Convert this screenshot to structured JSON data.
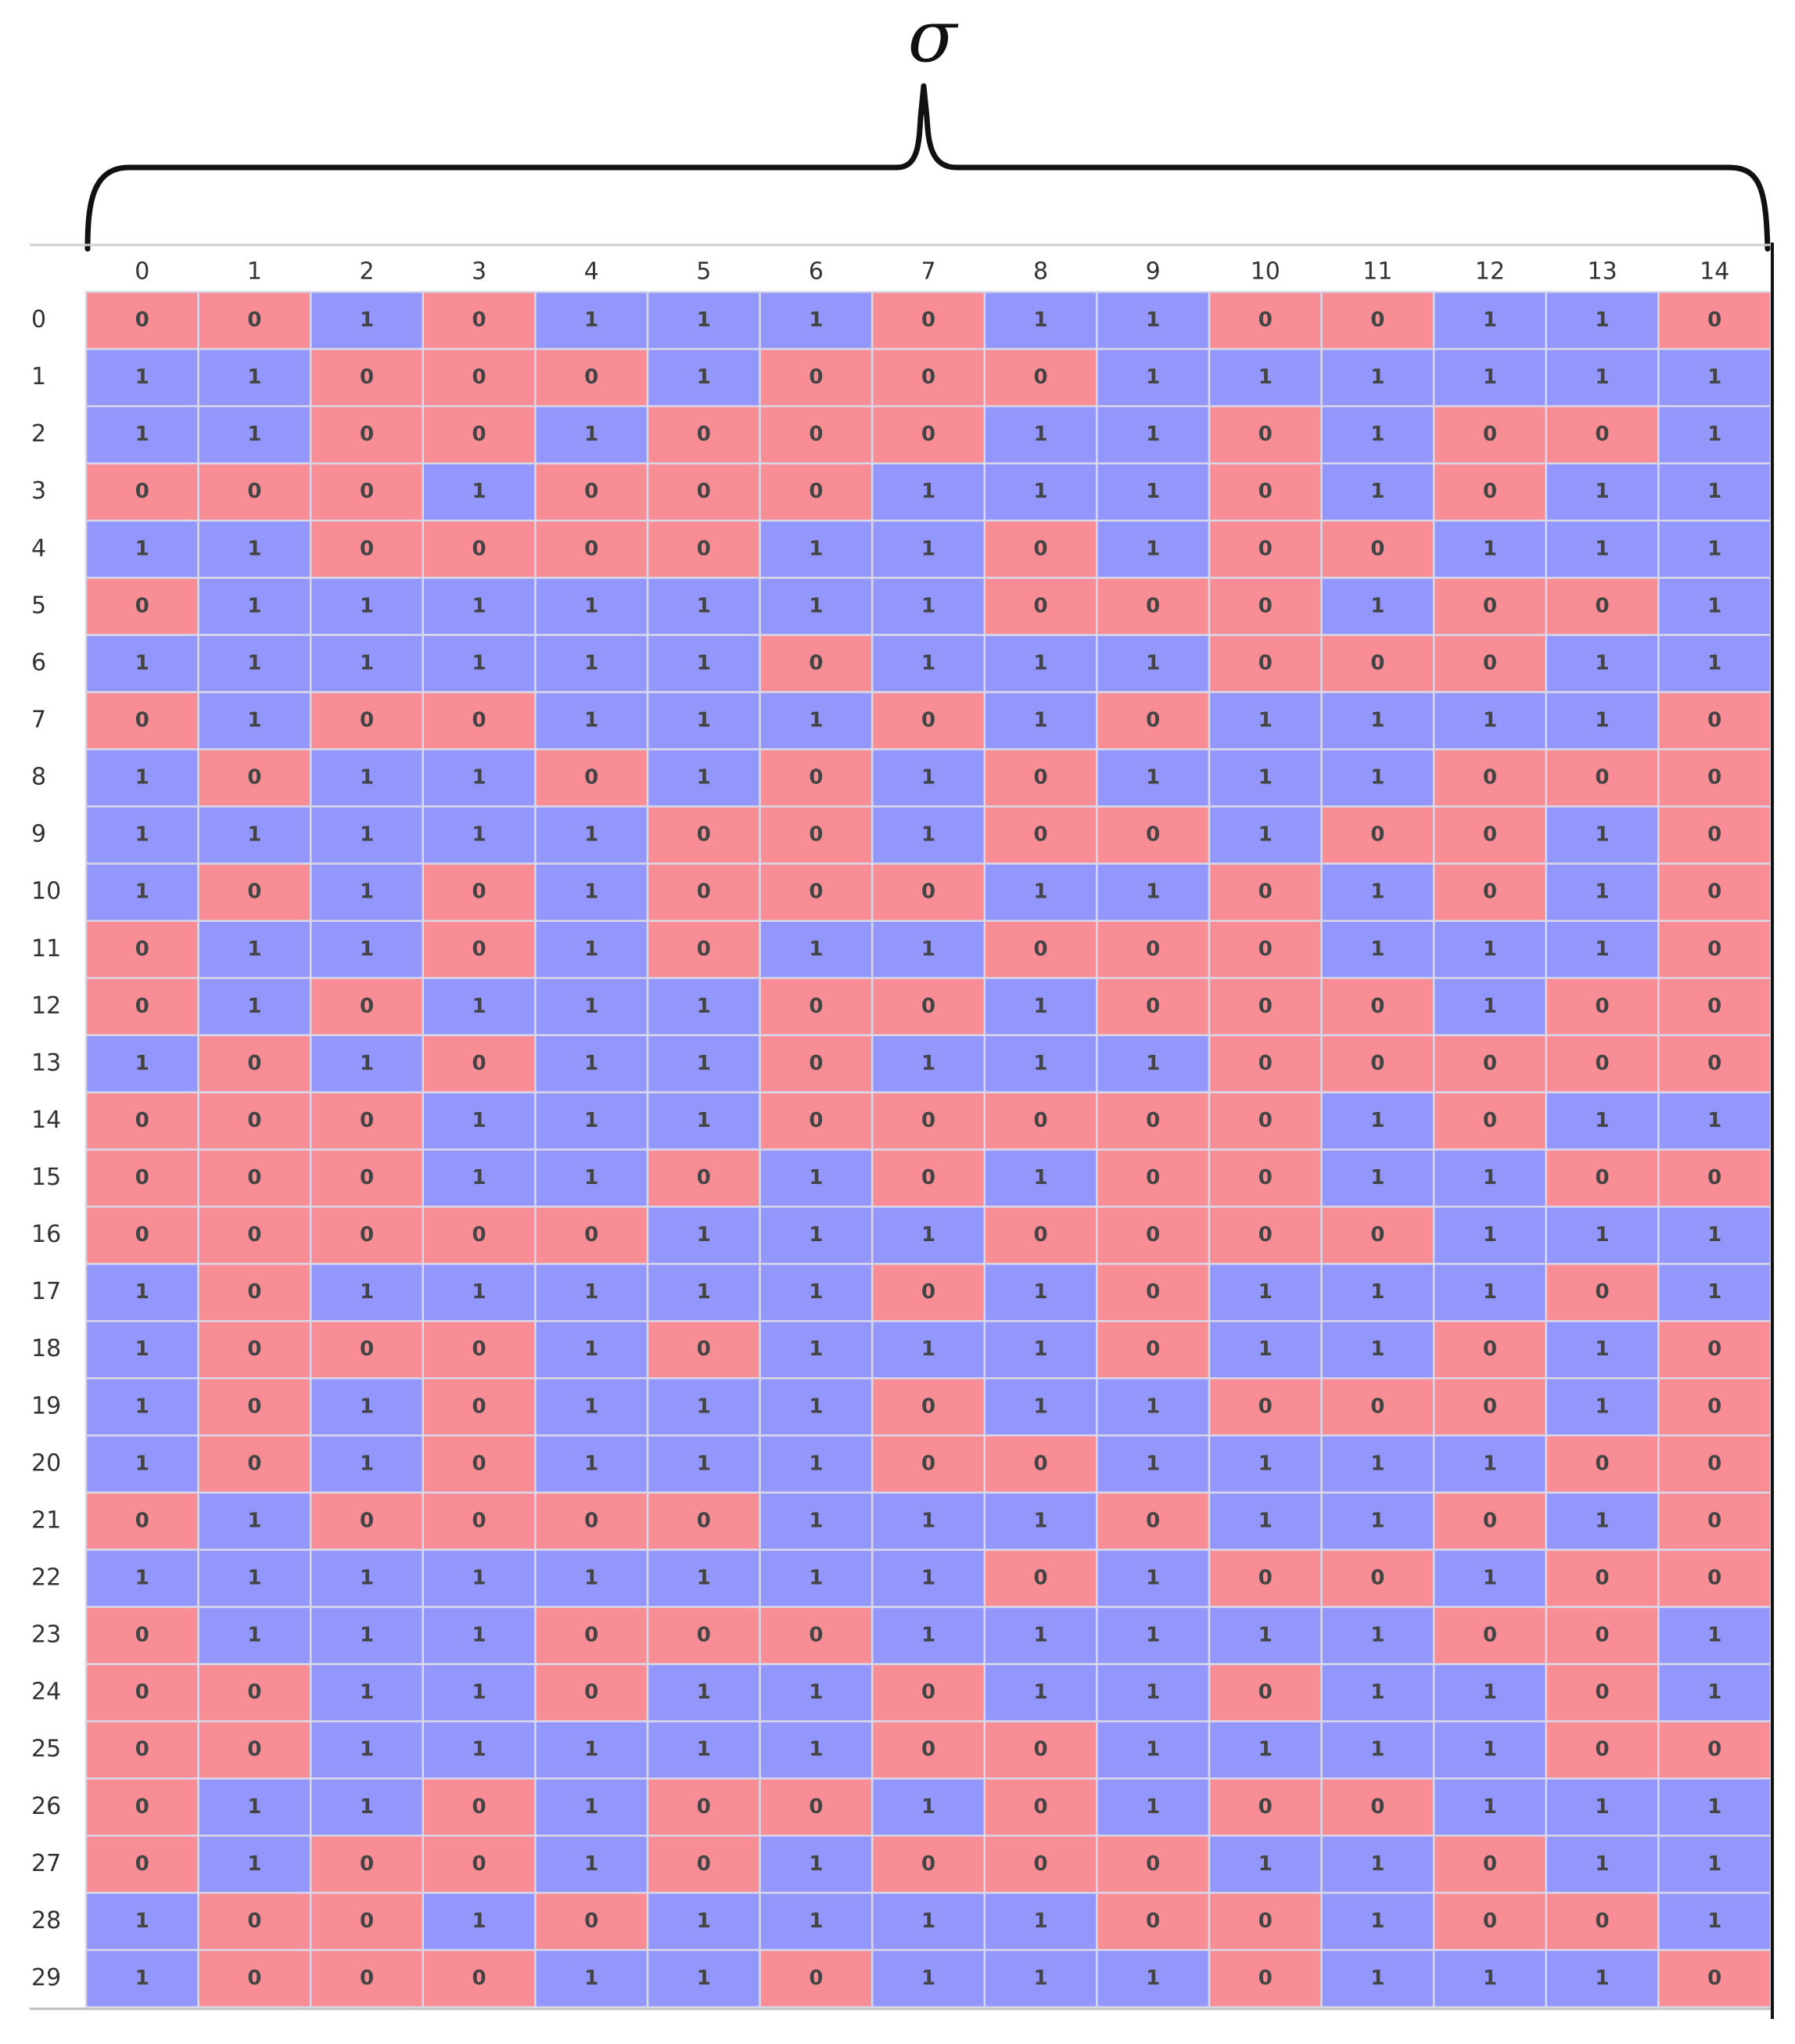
{
  "chart_data": {
    "type": "heatmap",
    "title": "σ",
    "xlabel": "",
    "ylabel": "",
    "columns": [
      "0",
      "1",
      "2",
      "3",
      "4",
      "5",
      "6",
      "7",
      "8",
      "9",
      "10",
      "11",
      "12",
      "13",
      "14"
    ],
    "rows": [
      "0",
      "1",
      "2",
      "3",
      "4",
      "5",
      "6",
      "7",
      "8",
      "9",
      "10",
      "11",
      "12",
      "13",
      "14",
      "15",
      "16",
      "17",
      "18",
      "19",
      "20",
      "21",
      "22",
      "23",
      "24",
      "25",
      "26",
      "27",
      "28",
      "29"
    ],
    "values": [
      [
        0,
        0,
        1,
        0,
        1,
        1,
        1,
        0,
        1,
        1,
        0,
        0,
        1,
        1,
        0
      ],
      [
        1,
        1,
        0,
        0,
        0,
        1,
        0,
        0,
        0,
        1,
        1,
        1,
        1,
        1,
        1
      ],
      [
        1,
        1,
        0,
        0,
        1,
        0,
        0,
        0,
        1,
        1,
        0,
        1,
        0,
        0,
        1
      ],
      [
        0,
        0,
        0,
        1,
        0,
        0,
        0,
        1,
        1,
        1,
        0,
        1,
        0,
        1,
        1
      ],
      [
        1,
        1,
        0,
        0,
        0,
        0,
        1,
        1,
        0,
        1,
        0,
        0,
        1,
        1,
        1
      ],
      [
        0,
        1,
        1,
        1,
        1,
        1,
        1,
        1,
        0,
        0,
        0,
        1,
        0,
        0,
        1
      ],
      [
        1,
        1,
        1,
        1,
        1,
        1,
        0,
        1,
        1,
        1,
        0,
        0,
        0,
        1,
        1
      ],
      [
        0,
        1,
        0,
        0,
        1,
        1,
        1,
        0,
        1,
        0,
        1,
        1,
        1,
        1,
        0
      ],
      [
        1,
        0,
        1,
        1,
        0,
        1,
        0,
        1,
        0,
        1,
        1,
        1,
        0,
        0,
        0
      ],
      [
        1,
        1,
        1,
        1,
        1,
        0,
        0,
        1,
        0,
        0,
        1,
        0,
        0,
        1,
        0
      ],
      [
        1,
        0,
        1,
        0,
        1,
        0,
        0,
        0,
        1,
        1,
        0,
        1,
        0,
        1,
        0
      ],
      [
        0,
        1,
        1,
        0,
        1,
        0,
        1,
        1,
        0,
        0,
        0,
        1,
        1,
        1,
        0
      ],
      [
        0,
        1,
        0,
        1,
        1,
        1,
        0,
        0,
        1,
        0,
        0,
        0,
        1,
        0,
        0
      ],
      [
        1,
        0,
        1,
        0,
        1,
        1,
        0,
        1,
        1,
        1,
        0,
        0,
        0,
        0,
        0
      ],
      [
        0,
        0,
        0,
        1,
        1,
        1,
        0,
        0,
        0,
        0,
        0,
        1,
        0,
        1,
        1
      ],
      [
        0,
        0,
        0,
        1,
        1,
        0,
        1,
        0,
        1,
        0,
        0,
        1,
        1,
        0,
        0
      ],
      [
        0,
        0,
        0,
        0,
        0,
        1,
        1,
        1,
        0,
        0,
        0,
        0,
        1,
        1,
        1
      ],
      [
        1,
        0,
        1,
        1,
        1,
        1,
        1,
        0,
        1,
        0,
        1,
        1,
        1,
        0,
        1
      ],
      [
        1,
        0,
        0,
        0,
        1,
        0,
        1,
        1,
        1,
        0,
        1,
        1,
        0,
        1,
        0
      ],
      [
        1,
        0,
        1,
        0,
        1,
        1,
        1,
        0,
        1,
        1,
        0,
        0,
        0,
        1,
        0
      ],
      [
        1,
        0,
        1,
        0,
        1,
        1,
        1,
        0,
        0,
        1,
        1,
        1,
        1,
        0,
        0
      ],
      [
        0,
        1,
        0,
        0,
        0,
        0,
        1,
        1,
        1,
        0,
        1,
        1,
        0,
        1,
        0
      ],
      [
        1,
        1,
        1,
        1,
        1,
        1,
        1,
        1,
        0,
        1,
        0,
        0,
        1,
        0,
        0
      ],
      [
        0,
        1,
        1,
        1,
        0,
        0,
        0,
        1,
        1,
        1,
        1,
        1,
        0,
        0,
        1
      ],
      [
        0,
        0,
        1,
        1,
        0,
        1,
        1,
        0,
        1,
        1,
        0,
        1,
        1,
        0,
        1
      ],
      [
        0,
        0,
        1,
        1,
        1,
        1,
        1,
        0,
        0,
        1,
        1,
        1,
        1,
        0,
        0
      ],
      [
        0,
        1,
        1,
        0,
        1,
        0,
        0,
        1,
        0,
        1,
        0,
        0,
        1,
        1,
        1
      ],
      [
        0,
        1,
        0,
        0,
        1,
        0,
        1,
        0,
        0,
        0,
        1,
        1,
        0,
        1,
        1
      ],
      [
        1,
        0,
        0,
        1,
        0,
        1,
        1,
        1,
        1,
        0,
        0,
        1,
        0,
        0,
        1
      ],
      [
        1,
        0,
        0,
        0,
        1,
        1,
        0,
        1,
        1,
        1,
        0,
        1,
        1,
        1,
        0
      ]
    ],
    "colors": {
      "0": "#f98d96",
      "1": "#9396fb",
      "grid": "#d8d8e8",
      "text": "#444444"
    },
    "grid": true,
    "legend": "none"
  }
}
